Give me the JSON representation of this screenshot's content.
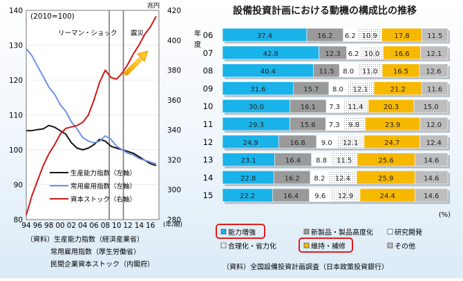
{
  "left_chart": {
    "base_label": "(2010=100)",
    "right_unit": "兆円",
    "annotation_lehman": "リーマン・ショック",
    "annotation_quake": "震災",
    "x_unit": "(年/期)",
    "x_ticks": [
      "94",
      "96",
      "98",
      "00",
      "02",
      "04",
      "06",
      "08",
      "10",
      "12",
      "14",
      "16"
    ],
    "y_left_ticks": [
      80,
      90,
      100,
      110,
      120,
      130,
      140
    ],
    "y_right_ticks": [
      280,
      300,
      320,
      340,
      360,
      380,
      400,
      420
    ],
    "legend": [
      "生産能力指数（左軸）",
      "常用雇用指数（左軸）",
      "資本ストック（右軸）"
    ],
    "sources": [
      "（資料）生産能力指数（経済産業省）",
      "常用雇用指数（厚生労働省）",
      "民間企業資本ストック（内閣府）"
    ]
  },
  "right_chart": {
    "title": "設備投資計画における動機の構成比の推移",
    "year_axis_label": "年度",
    "percent_unit": "(%)",
    "legend": [
      "能力増強",
      "新製品・製品高度化",
      "研究開発",
      "合理化・省力化",
      "維持・補修",
      "その他"
    ],
    "source": "（資料）全国設備投資計画調査（日本政策投資銀行）"
  },
  "chart_data": [
    {
      "type": "line",
      "title": "",
      "xlabel": "(年/期)",
      "ylabel": "",
      "x": [
        1994,
        1995,
        1996,
        1997,
        1998,
        1999,
        2000,
        2001,
        2002,
        2003,
        2004,
        2005,
        2006,
        2007,
        2008,
        2009,
        2010,
        2011,
        2012,
        2013,
        2014,
        2015,
        2016,
        2017
      ],
      "ylim": [
        80,
        140
      ],
      "y2lim": [
        280,
        420
      ],
      "markers": [
        {
          "x": 2008.7,
          "label": "リーマン・ショック"
        },
        {
          "x": 2011.2,
          "label": "震災"
        }
      ],
      "series": [
        {
          "name": "生産能力指数（左軸）",
          "axis": "left",
          "color": "#111111",
          "values": [
            105.5,
            105.5,
            105.8,
            106,
            107,
            106.5,
            105.5,
            104.5,
            102,
            100.5,
            100,
            100.5,
            101.5,
            103,
            102.5,
            101,
            100.5,
            100,
            99.5,
            99,
            98,
            97,
            96,
            95.5
          ]
        },
        {
          "name": "常用雇用指数（左軸）",
          "axis": "left",
          "color": "#6a8fe8",
          "values": [
            129,
            127,
            124,
            121,
            118,
            116,
            113,
            111,
            108,
            106,
            103.5,
            102.5,
            102,
            102.5,
            104,
            103,
            101,
            100,
            99,
            98.5,
            97.5,
            97,
            96.5,
            96
          ]
        },
        {
          "name": "資本ストック（右軸）",
          "axis": "right",
          "color": "#d11414",
          "values": [
            283,
            296,
            306,
            316,
            324,
            330,
            337,
            341,
            342,
            343,
            345,
            350,
            360,
            372,
            380,
            375,
            374,
            378,
            384,
            391,
            397,
            404,
            409,
            416
          ]
        }
      ]
    },
    {
      "type": "bar",
      "orientation": "horizontal",
      "stacked": true,
      "categories": [
        "06",
        "07",
        "08",
        "09",
        "10",
        "11",
        "12",
        "13",
        "14",
        "15"
      ],
      "xlabel": "(%)",
      "ylabel": "年度",
      "xlim": [
        0,
        100
      ],
      "series": [
        {
          "name": "能力増強",
          "color": "#19b3ea",
          "values": [
            37.4,
            42.8,
            40.4,
            31.6,
            30.0,
            29.3,
            24.9,
            23.1,
            22.8,
            22.2
          ]
        },
        {
          "name": "新製品・製品高度化",
          "color": "#9a9a9a",
          "values": [
            16.2,
            12.3,
            11.5,
            15.7,
            16.1,
            15.6,
            16.8,
            16.4,
            16.2,
            16.4
          ]
        },
        {
          "name": "研究開発",
          "color": "#ffffff",
          "values": [
            6.2,
            6.2,
            8.0,
            8.0,
            7.3,
            7.3,
            9.0,
            8.8,
            8.2,
            9.6
          ]
        },
        {
          "name": "合理化・省力化",
          "color": "#ffffff",
          "values": [
            10.9,
            10.0,
            11.0,
            12.1,
            11.4,
            9.8,
            12.1,
            11.5,
            12.4,
            12.9
          ]
        },
        {
          "name": "維持・補修",
          "color": "#f7b800",
          "values": [
            17.8,
            16.6,
            16.5,
            21.2,
            20.3,
            23.9,
            24.7,
            25.6,
            25.9,
            24.4
          ]
        },
        {
          "name": "その他",
          "color": "#bdbdbd",
          "values": [
            11.5,
            12.1,
            12.6,
            11.6,
            15.0,
            12.0,
            12.4,
            14.6,
            14.6,
            14.6
          ]
        }
      ],
      "labels": [
        [
          "37.4",
          "16.2",
          "6.2",
          "10.9",
          "17.8",
          "11.5"
        ],
        [
          "42.8",
          "12.3",
          "6.2",
          "10.0",
          "16.6",
          "12.1"
        ],
        [
          "40.4",
          "11.5",
          "8.0",
          "11.0",
          "16.5",
          "12.6"
        ],
        [
          "31.6",
          "15.7",
          "8.0",
          "12.1",
          "21.2",
          "11.6"
        ],
        [
          "30.0",
          "16.1",
          "7.3",
          "11.4",
          "20.3",
          "15.0"
        ],
        [
          "29.3",
          "15.6",
          "7.3",
          "9.8",
          "23.9",
          "12.0"
        ],
        [
          "24.9",
          "16.8",
          "9.0",
          "12.1",
          "24.7",
          "12.4"
        ],
        [
          "23.1",
          "16.4",
          "8.8",
          "11.5",
          "25.6",
          "14.6"
        ],
        [
          "22.8",
          "16.2",
          "8.2",
          "12.4",
          "25.9",
          "14.6"
        ],
        [
          "22.2",
          "16.4",
          "9.6",
          "12.9",
          "24.4",
          "14.6"
        ]
      ],
      "highlighted": [
        "能力増強",
        "維持・補修"
      ]
    }
  ]
}
